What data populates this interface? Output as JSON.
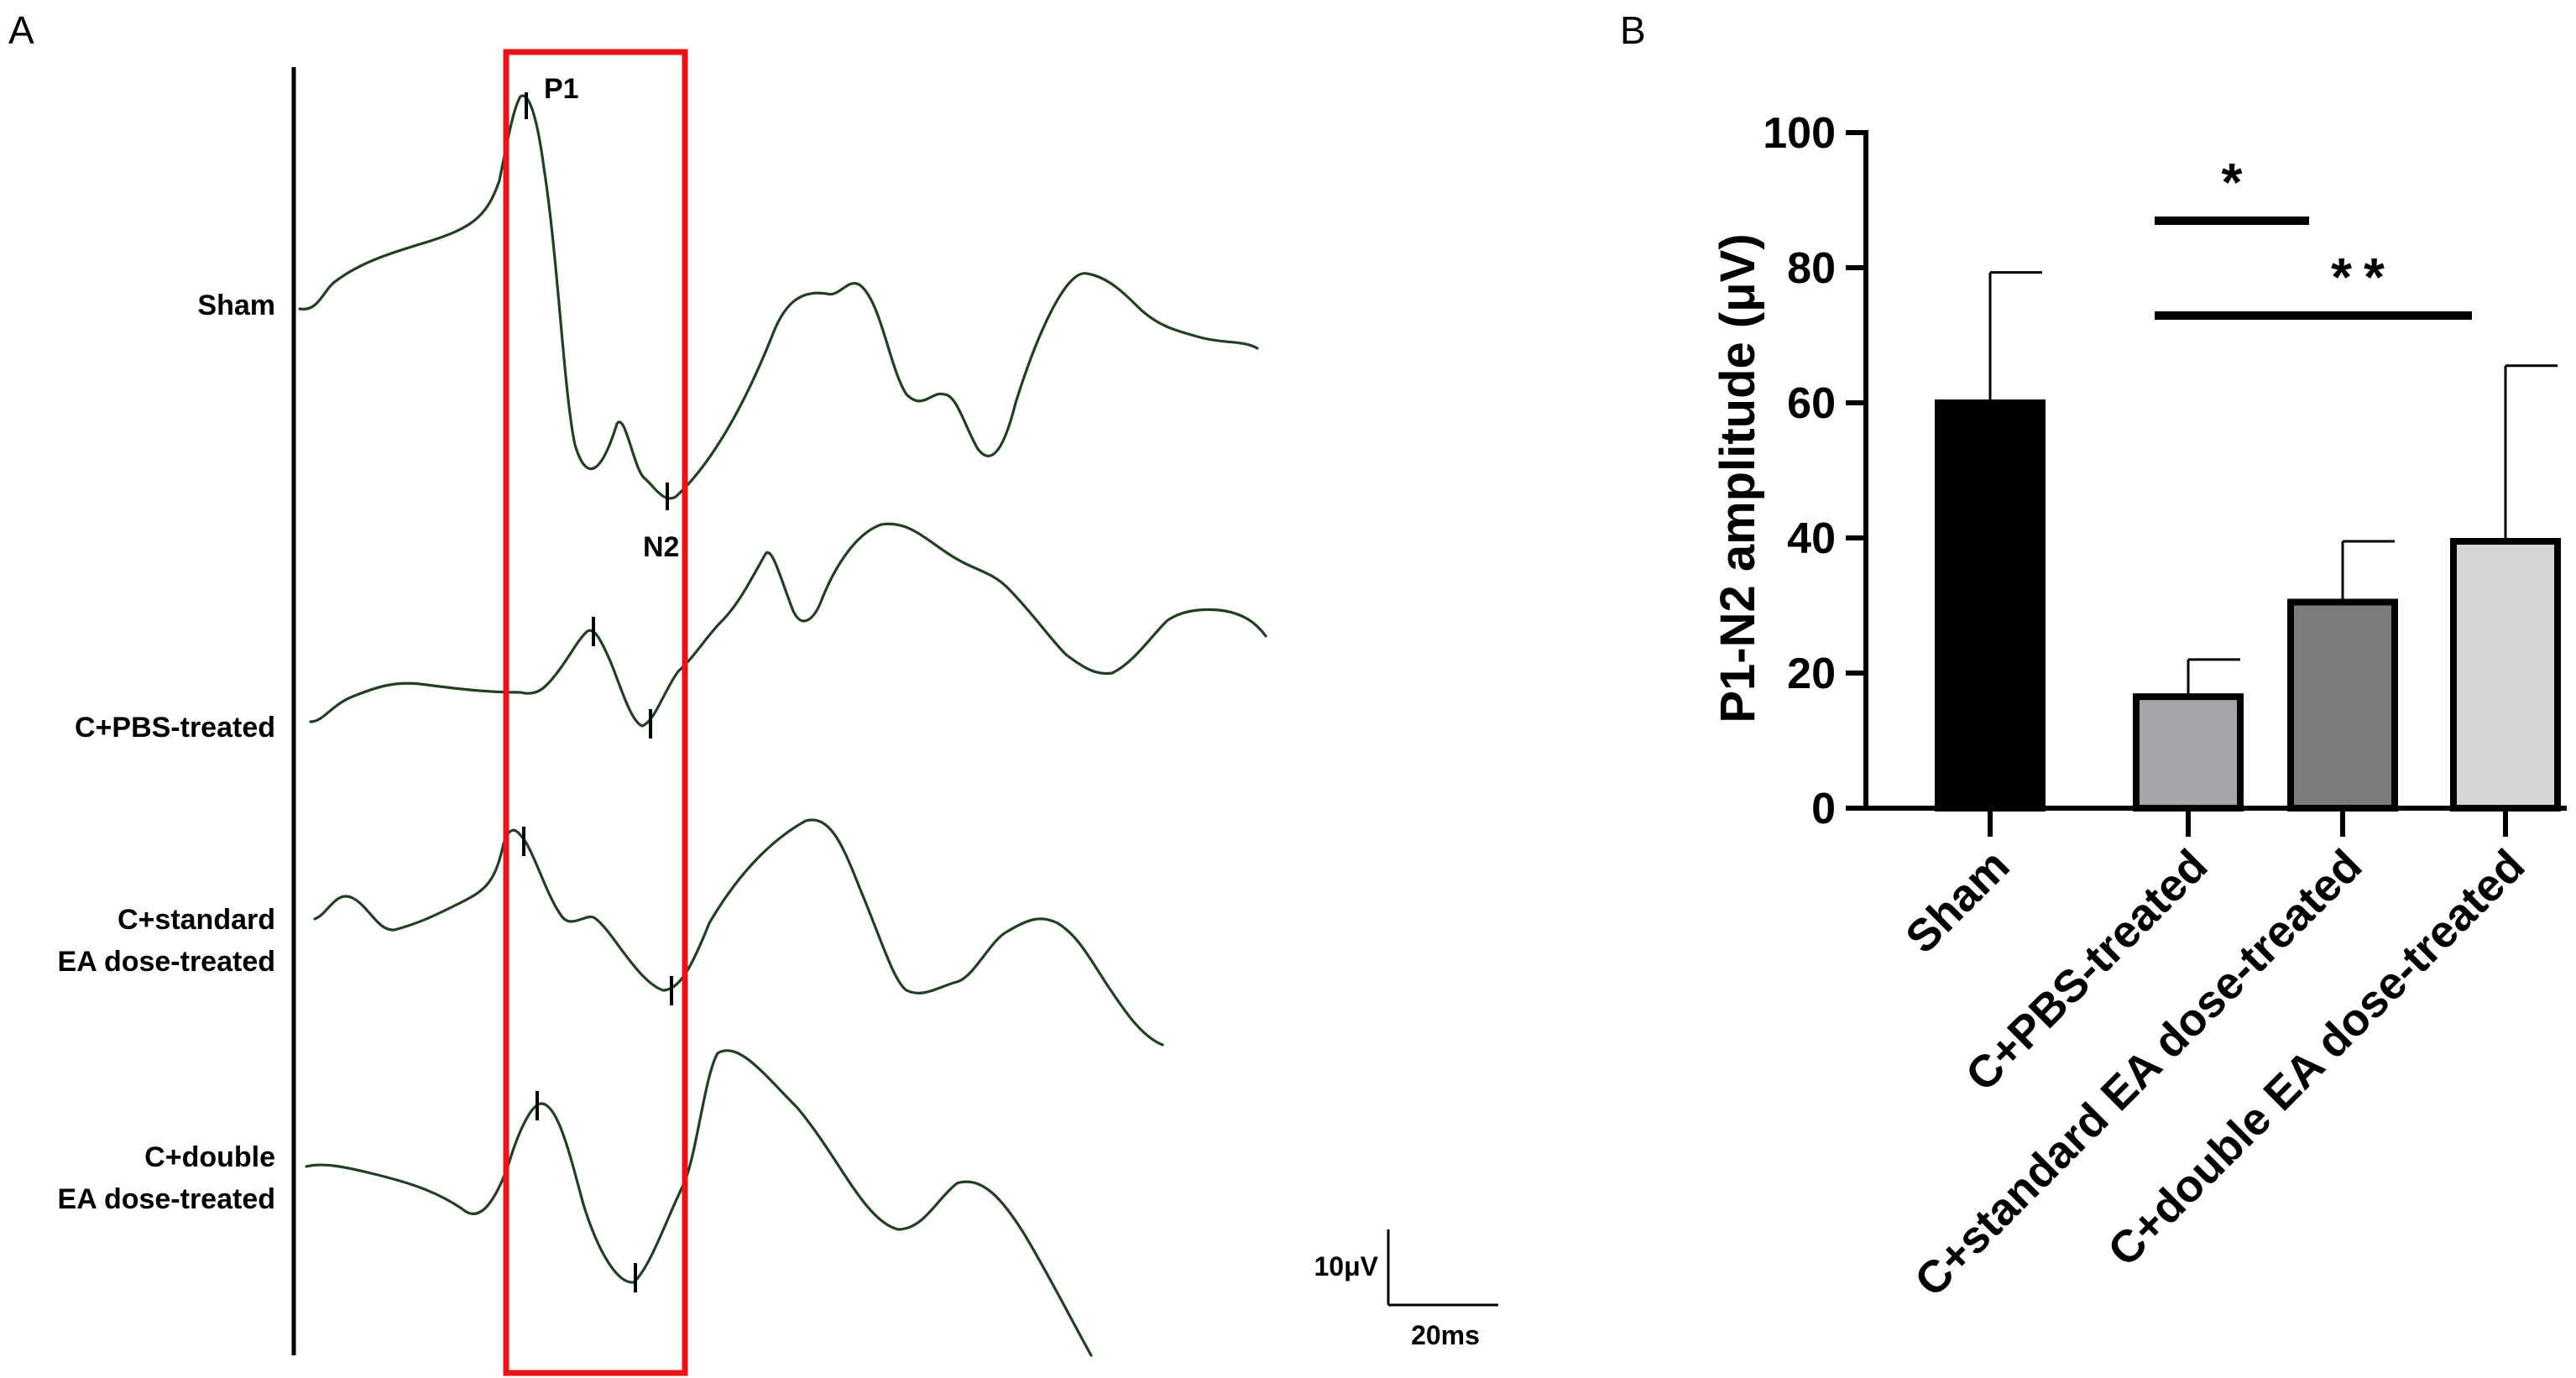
{
  "chart_data": [
    {
      "type": "line",
      "panel": "A",
      "traces": [
        {
          "label": "Sham",
          "label_lines": [
            "Sham"
          ]
        },
        {
          "label": "C+PBS-treated",
          "label_lines": [
            "C+PBS-treated"
          ]
        },
        {
          "label": "C+standard EA dose-treated",
          "label_lines": [
            "C+standard",
            "EA dose-treated"
          ]
        },
        {
          "label": "C+double EA dose-treated",
          "label_lines": [
            "C+double",
            "EA dose-treated"
          ]
        }
      ],
      "peak_labels": {
        "p1": "P1",
        "n2": "N2"
      },
      "scale_bar": {
        "amplitude": "10μV",
        "time": "20ms"
      },
      "colors": {
        "trace": "#233f23",
        "highlight_box": "#e8141a"
      }
    },
    {
      "type": "bar",
      "panel": "B",
      "ylabel": "P1-N2 amplitude (μV)",
      "ylim": [
        0,
        100
      ],
      "yticks": [
        0,
        20,
        40,
        60,
        80,
        100
      ],
      "categories": [
        "Sham",
        "C+PBS-treated",
        "C+standard EA dose-treated",
        "C+double EA dose-treated"
      ],
      "values": [
        60,
        16.5,
        30.5,
        39.5
      ],
      "errors": [
        19.3,
        5.5,
        9,
        26
      ],
      "colors": [
        "#000000",
        "#a6a6aa",
        "#7b7b7b",
        "#d6d6d6"
      ],
      "significance": [
        {
          "from": 1,
          "to": 2,
          "label": "*"
        },
        {
          "from": 1,
          "to": 3,
          "label": "**"
        }
      ]
    }
  ]
}
